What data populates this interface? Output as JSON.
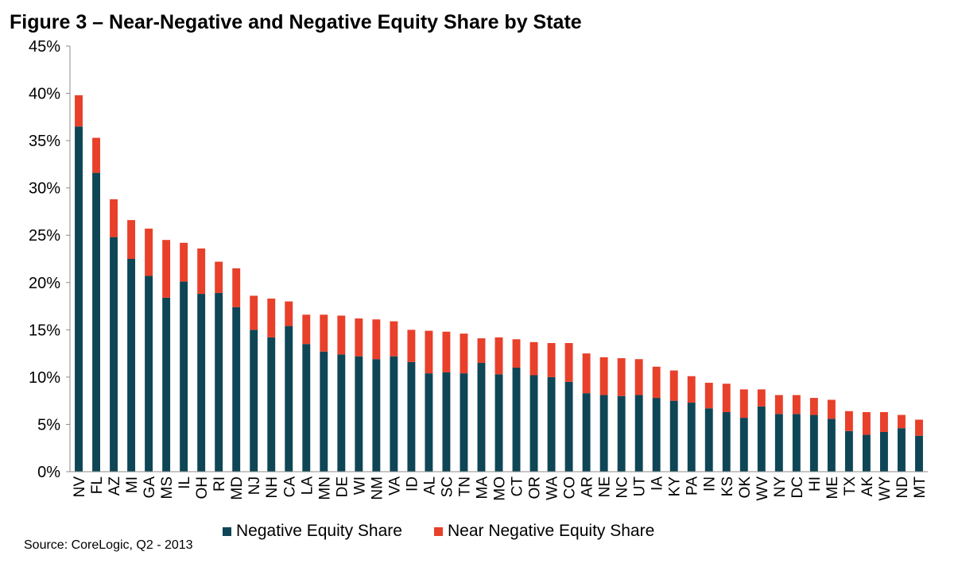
{
  "chart_data": {
    "type": "bar",
    "stacked": true,
    "title": "Figure 3 – Near-Negative and Negative Equity Share by State",
    "xlabel": "",
    "ylabel": "",
    "ylim": [
      0,
      45
    ],
    "yticks": [
      "0%",
      "5%",
      "10%",
      "15%",
      "20%",
      "25%",
      "30%",
      "35%",
      "40%",
      "45%"
    ],
    "grid": false,
    "legend_position": "bottom",
    "categories": [
      "NV",
      "FL",
      "AZ",
      "MI",
      "GA",
      "MS",
      "IL",
      "OH",
      "RI",
      "MD",
      "NJ",
      "NH",
      "CA",
      "LA",
      "MN",
      "DE",
      "WI",
      "NM",
      "VA",
      "ID",
      "AL",
      "SC",
      "TN",
      "MA",
      "MO",
      "CT",
      "OR",
      "WA",
      "CO",
      "AR",
      "NE",
      "NC",
      "UT",
      "IA",
      "KY",
      "PA",
      "IN",
      "KS",
      "OK",
      "WV",
      "NY",
      "DC",
      "HI",
      "ME",
      "TX",
      "AK",
      "WY",
      "ND",
      "MT"
    ],
    "series": [
      {
        "name": "Negative Equity Share",
        "color": "#0e4656",
        "values": [
          36.5,
          31.6,
          24.8,
          22.5,
          20.7,
          18.4,
          20.1,
          18.8,
          18.9,
          17.4,
          15.0,
          14.2,
          15.4,
          13.5,
          12.7,
          12.4,
          12.2,
          11.9,
          12.2,
          11.6,
          10.4,
          10.5,
          10.4,
          11.5,
          10.3,
          11.0,
          10.2,
          10.0,
          9.5,
          8.3,
          8.1,
          8.0,
          8.1,
          7.8,
          7.5,
          7.3,
          6.7,
          6.3,
          5.7,
          6.9,
          6.1,
          6.1,
          6.0,
          5.6,
          4.3,
          3.9,
          4.2,
          4.6,
          3.8
        ]
      },
      {
        "name": "Near Negative Equity Share",
        "color": "#e8402a",
        "values": [
          3.3,
          3.7,
          4.0,
          4.1,
          5.0,
          6.1,
          4.1,
          4.8,
          3.3,
          4.1,
          3.6,
          4.1,
          2.6,
          3.1,
          3.9,
          4.1,
          4.0,
          4.2,
          3.7,
          3.4,
          4.5,
          4.3,
          4.2,
          2.6,
          3.9,
          3.0,
          3.5,
          3.6,
          4.1,
          4.2,
          4.0,
          4.0,
          3.8,
          3.3,
          3.2,
          2.8,
          2.7,
          3.0,
          3.0,
          1.8,
          2.0,
          2.0,
          1.8,
          2.0,
          2.1,
          2.4,
          2.1,
          1.4,
          1.7
        ]
      }
    ],
    "source": "Source: CoreLogic, Q2 - 2013"
  }
}
